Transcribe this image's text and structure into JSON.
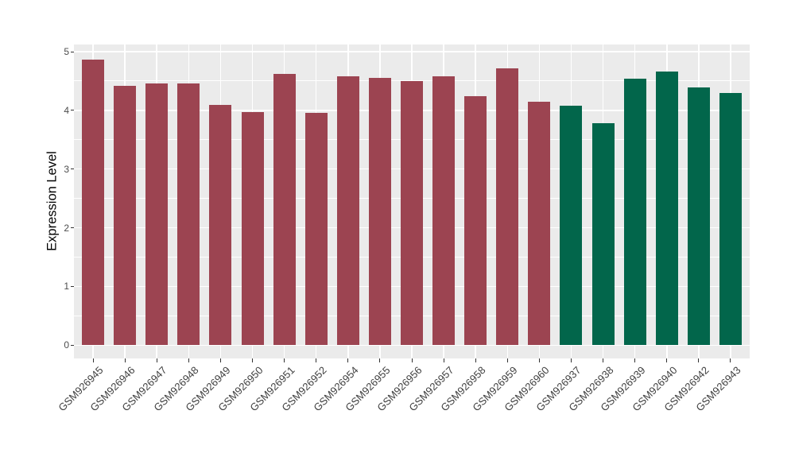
{
  "chart_data": {
    "type": "bar",
    "ylabel": "Expression Level",
    "xlabel": "",
    "categories": [
      "GSM926945",
      "GSM926946",
      "GSM926947",
      "GSM926948",
      "GSM926949",
      "GSM926950",
      "GSM926951",
      "GSM926952",
      "GSM926954",
      "GSM926955",
      "GSM926956",
      "GSM926957",
      "GSM926958",
      "GSM926959",
      "GSM926960",
      "GSM926937",
      "GSM926938",
      "GSM926939",
      "GSM926940",
      "GSM926942",
      "GSM926943"
    ],
    "values": [
      4.87,
      4.42,
      4.46,
      4.46,
      4.09,
      3.97,
      4.62,
      3.96,
      4.58,
      4.55,
      4.5,
      4.58,
      4.24,
      4.72,
      4.15,
      4.08,
      3.78,
      4.54,
      4.66,
      4.39,
      4.29
    ],
    "colors": [
      "#9C4451",
      "#9C4451",
      "#9C4451",
      "#9C4451",
      "#9C4451",
      "#9C4451",
      "#9C4451",
      "#9C4451",
      "#9C4451",
      "#9C4451",
      "#9C4451",
      "#9C4451",
      "#9C4451",
      "#9C4451",
      "#9C4451",
      "#02664B",
      "#02664B",
      "#02664B",
      "#02664B",
      "#02664B",
      "#02664B"
    ],
    "ylim": [
      0,
      5.12
    ],
    "yticks": [
      0,
      1,
      2,
      3,
      4,
      5
    ],
    "yticks_minor": [
      0.5,
      1.5,
      2.5,
      3.5,
      4.5
    ],
    "legend": "none",
    "grid": "horizontal major+minor and vertical major, white on gray panel",
    "panel_bg": "#EBEBEB",
    "grid_color": "#FFFFFF",
    "axis_text_color": "#4D4D4D",
    "tick_color": "#333333",
    "figure_bg": "#FFFFFF"
  }
}
